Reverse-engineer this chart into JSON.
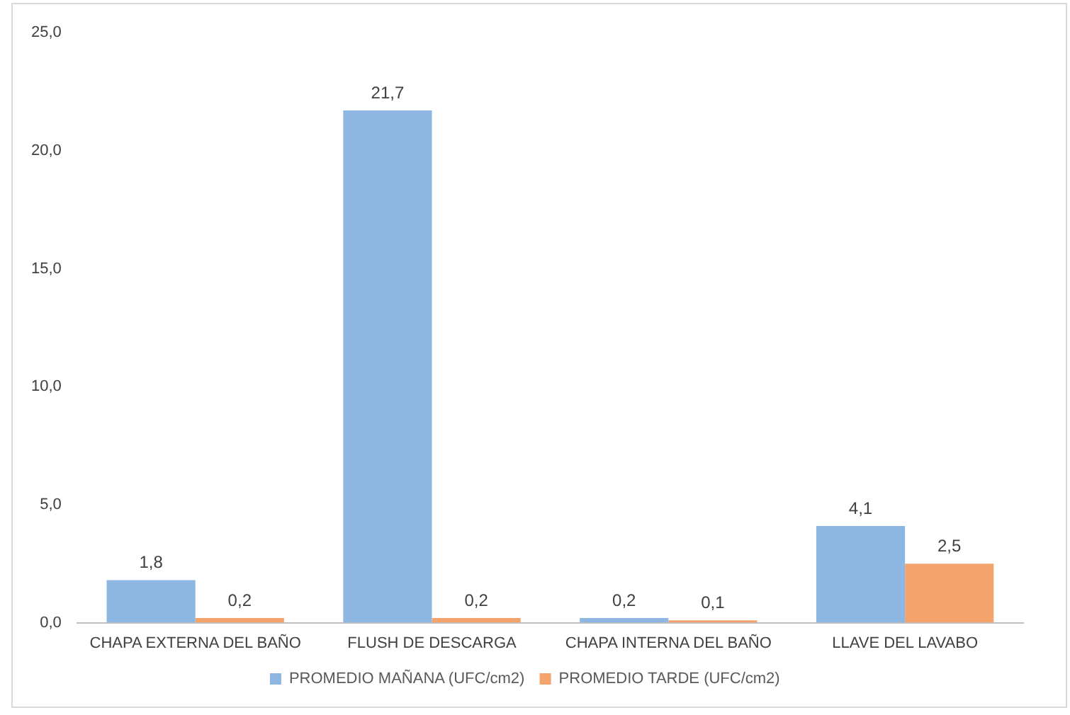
{
  "chart_data": {
    "type": "bar",
    "categories": [
      "CHAPA EXTERNA DEL BAÑO",
      "FLUSH DE DESCARGA",
      "CHAPA INTERNA DEL BAÑO",
      "LLAVE DEL LAVABO"
    ],
    "series": [
      {
        "name": "PROMEDIO MAÑANA (UFC/cm2)",
        "color": "#8db7e2",
        "values": [
          1.8,
          21.7,
          0.2,
          4.1
        ],
        "value_labels": [
          "1,8",
          "21,7",
          "0,2",
          "4,1"
        ]
      },
      {
        "name": "PROMEDIO TARDE (UFC/cm2)",
        "color": "#f4a36c",
        "values": [
          0.2,
          0.2,
          0.1,
          2.5
        ],
        "value_labels": [
          "0,2",
          "0,2",
          "0,1",
          "2,5"
        ]
      }
    ],
    "ylim": [
      0,
      25
    ],
    "yticks": [
      {
        "value": 0,
        "label": "0,0"
      },
      {
        "value": 5,
        "label": "5,0"
      },
      {
        "value": 10,
        "label": "10,0"
      },
      {
        "value": 15,
        "label": "15,0"
      },
      {
        "value": 20,
        "label": "20,0"
      },
      {
        "value": 25,
        "label": "25,0"
      }
    ],
    "grid": false,
    "legend": "bottom"
  }
}
